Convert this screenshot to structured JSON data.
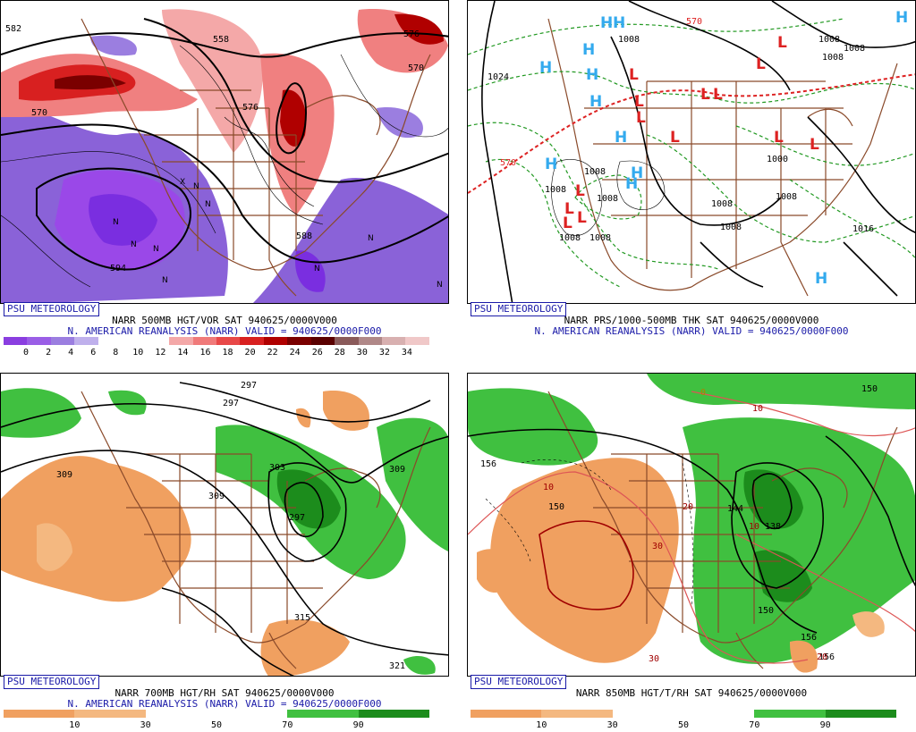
{
  "panels": [
    {
      "id": "p1",
      "badge": "PSU METEOROLOGY",
      "line1": "NARR 500MB HGT/VOR SAT 940625/0000V000",
      "line2": "N. AMERICAN REANALYSIS (NARR) VALID = 940625/0000F000",
      "colorbar": {
        "colors": [
          "#8a3ee0",
          "#9a5ee6",
          "#9b7ee0",
          "#bfb0ec",
          "#ffffff",
          "#ffffff",
          "#ffffff",
          "#f4a8a8",
          "#f07a7a",
          "#e84848",
          "#d82020",
          "#b00000",
          "#7a0000",
          "#5a0000",
          "#8a5a5a",
          "#b08888",
          "#d8b0b0",
          "#f0c8c8"
        ],
        "ticks": [
          "0",
          "2",
          "4",
          "6",
          "8",
          "10",
          "12",
          "14",
          "16",
          "18",
          "20",
          "22",
          "24",
          "26",
          "28",
          "30",
          "32",
          "34"
        ]
      },
      "contour_labels": [
        "582",
        "558",
        "576",
        "570",
        "576",
        "570",
        "594",
        "588"
      ],
      "n_marks": [
        "N",
        "N",
        "N",
        "N",
        "N",
        "N",
        "N",
        "N",
        "N"
      ],
      "x_mark": "X"
    },
    {
      "id": "p2",
      "badge": "PSU METEOROLOGY",
      "line1": "NARR PRS/1000-500MB THK SAT 940625/0000V000",
      "line2": "N. AMERICAN REANALYSIS (NARR) VALID = 940625/0000F000",
      "colorbar": null,
      "contour_labels": [
        "1024",
        "1008",
        "1008",
        "1008",
        "1008",
        "1008",
        "1008",
        "1000",
        "1008",
        "1008",
        "1016",
        "1008",
        "1008",
        "1008",
        "1008",
        "570",
        "570"
      ],
      "highs": [
        "H",
        "H",
        "H",
        "H",
        "H",
        "H",
        "H",
        "H",
        "H",
        "H",
        "H",
        "H",
        "H",
        "H"
      ],
      "lows": [
        "L",
        "L",
        "L",
        "L",
        "L",
        "L",
        "L",
        "L",
        "L",
        "L",
        "L",
        "L",
        "L",
        "L"
      ]
    },
    {
      "id": "p3",
      "badge": "PSU METEOROLOGY",
      "line1": "NARR 700MB HGT/RH SAT 940625/0000V000",
      "line2": "N. AMERICAN REANALYSIS (NARR) VALID = 940625/0000F000",
      "colorbar": {
        "colors": [
          "#f0a060",
          "#f4b880",
          "#ffffff",
          "#ffffff",
          "#40c040",
          "#1c8c1c"
        ],
        "ticks": [
          "10",
          "30",
          "50",
          "70",
          "90"
        ]
      },
      "contour_labels": [
        "297",
        "297",
        "303",
        "309",
        "309",
        "309",
        "297",
        "315",
        "321"
      ]
    },
    {
      "id": "p4",
      "badge": "PSU METEOROLOGY",
      "line1": "NARR 850MB HGT/T/RH SAT 940625/0000V000",
      "line2": "",
      "colorbar": {
        "colors": [
          "#f0a060",
          "#f4b880",
          "#ffffff",
          "#ffffff",
          "#40c040",
          "#1c8c1c"
        ],
        "ticks": [
          "10",
          "30",
          "50",
          "70",
          "90"
        ]
      },
      "contour_labels": [
        "156",
        "150",
        "144",
        "138",
        "150",
        "156",
        "150",
        "156"
      ],
      "temp_labels": [
        "10",
        "10",
        "20",
        "30",
        "30",
        "10",
        "20",
        "0"
      ]
    }
  ]
}
